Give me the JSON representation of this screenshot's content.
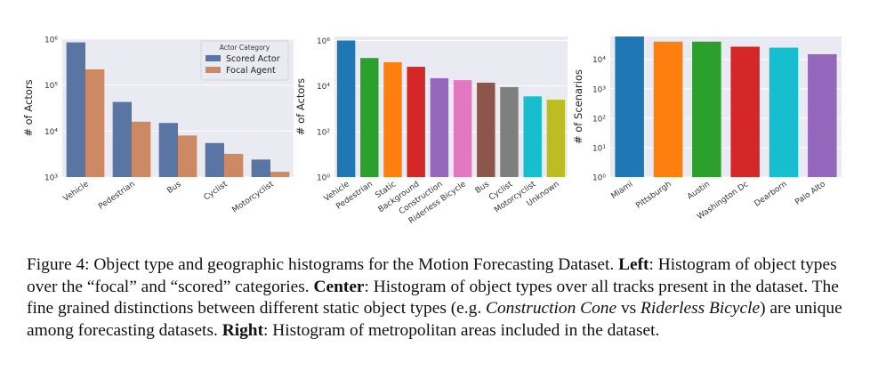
{
  "chart_data": [
    {
      "type": "bar",
      "ylabel": "# of Actors",
      "yscale": "log",
      "ylim": [
        1000,
        1000000
      ],
      "yticks": [
        {
          "value": 1000,
          "label": "10³"
        },
        {
          "value": 10000,
          "label": "10⁴"
        },
        {
          "value": 100000,
          "label": "10⁵"
        },
        {
          "value": 1000000,
          "label": "10⁶"
        }
      ],
      "categories": [
        "Vehicle",
        "Pedestrian",
        "Bus",
        "Cyclist",
        "Motorcyclist"
      ],
      "legend_title": "Actor Category",
      "legend_position": "upper-right",
      "grid": true,
      "series": [
        {
          "name": "Scored Actor",
          "color": "#5875a4",
          "values": [
            850000,
            43000,
            15000,
            5500,
            2400
          ]
        },
        {
          "name": "Focal Agent",
          "color": "#cc8963",
          "values": [
            220000,
            16000,
            8000,
            3200,
            1300
          ]
        }
      ]
    },
    {
      "type": "bar",
      "ylabel": "# of Actors",
      "yscale": "log",
      "ylim": [
        1,
        1500000
      ],
      "yticks": [
        {
          "value": 1,
          "label": "10⁰"
        },
        {
          "value": 100,
          "label": "10²"
        },
        {
          "value": 10000,
          "label": "10⁴"
        },
        {
          "value": 1000000,
          "label": "10⁶"
        }
      ],
      "grid": true,
      "categories": [
        "Vehicle",
        "Pedestrian",
        "Static",
        "Background",
        "Construction",
        "Riderless Bicycle",
        "Bus",
        "Cyclist",
        "Motorcyclist",
        "Unknown"
      ],
      "values": [
        1000000,
        170000,
        110000,
        70000,
        22000,
        18000,
        14000,
        9000,
        3500,
        2500
      ],
      "colors": [
        "#1f77b4",
        "#2ca02c",
        "#ff7f0e",
        "#d62728",
        "#9467bd",
        "#e377c2",
        "#8c564b",
        "#7f7f7f",
        "#17becf",
        "#bcbd22"
      ]
    },
    {
      "type": "bar",
      "ylabel": "# of Scenarios",
      "yscale": "log",
      "ylim": [
        1,
        60000
      ],
      "yticks": [
        {
          "value": 1,
          "label": "10⁰"
        },
        {
          "value": 10,
          "label": "10¹"
        },
        {
          "value": 100,
          "label": "10²"
        },
        {
          "value": 1000,
          "label": "10³"
        },
        {
          "value": 10000,
          "label": "10⁴"
        }
      ],
      "grid": true,
      "categories": [
        "Miami",
        "Pittsburgh",
        "Austin",
        "Washington Dc",
        "Dearborn",
        "Palo Alto"
      ],
      "values": [
        60000,
        40000,
        40000,
        27000,
        25000,
        15000
      ],
      "colors": [
        "#1f77b4",
        "#ff7f0e",
        "#2ca02c",
        "#d62728",
        "#17becf",
        "#9467bd"
      ]
    }
  ],
  "caption": {
    "lead": "Figure 4: Object type and geographic histograms for the Motion Forecasting Dataset. ",
    "left_label": "Left",
    "left_text": ": Histogram of object types over the “focal” and “scored” categories. ",
    "center_label": "Center",
    "center_text": ": Histogram of object types over all tracks present in the dataset. The fine grained distinctions between different static object types (e.g. ",
    "italic_1": "Construction Cone",
    "vs_text": " vs ",
    "italic_2": "Riderless Bicycle",
    "after_text": ") are unique among forecasting datasets. ",
    "right_label": "Right",
    "right_text": ": Histogram of metropolitan areas included in the dataset."
  }
}
